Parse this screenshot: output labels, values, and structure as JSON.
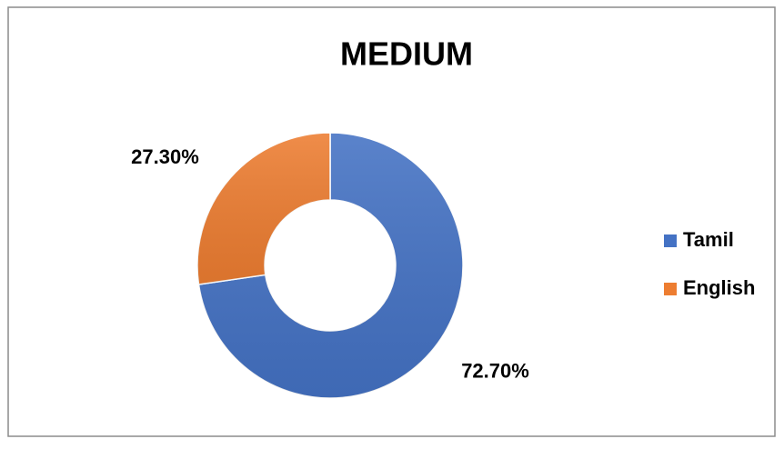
{
  "chart_data": {
    "type": "donut",
    "title": "MEDIUM",
    "categories": [
      "Tamil",
      "English"
    ],
    "values": [
      72.7,
      27.3
    ],
    "value_labels": [
      "72.70%",
      "27.30%"
    ],
    "colors": [
      "#4472c4",
      "#ed7d31"
    ],
    "legend": "right"
  }
}
